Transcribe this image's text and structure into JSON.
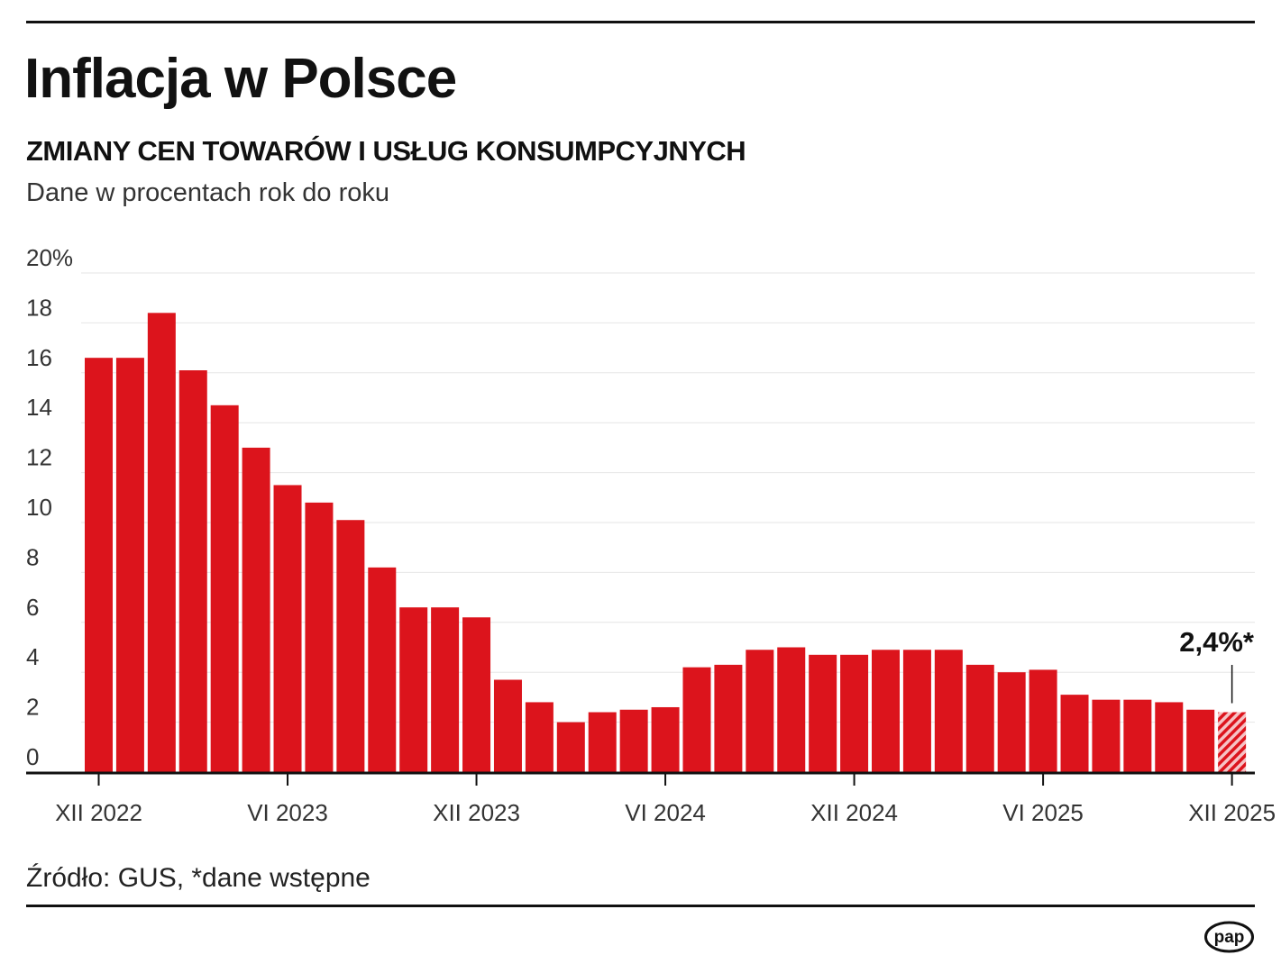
{
  "header": {
    "title": "Inflacja w Polsce",
    "subtitle": "ZMIANY CEN TOWARÓW I USŁUG KONSUMPCYJNYCH",
    "unit_note": "Dane w procentach rok do roku"
  },
  "footer": {
    "source": "Źródło: GUS, *dane wstępne",
    "logo_text": "pap"
  },
  "chart_data": {
    "type": "bar",
    "title": "Inflacja w Polsce",
    "subtitle": "ZMIANY CEN TOWARÓW I USŁUG KONSUMPCYJNYCH",
    "ylabel": "Dane w procentach rok do roku",
    "ylim": [
      0,
      20
    ],
    "yticks": [
      "0",
      "2",
      "4",
      "6",
      "8",
      "10",
      "12",
      "14",
      "16",
      "18",
      "20%"
    ],
    "grid": true,
    "bar_color": "#dc141c",
    "categories": [
      "XII 2022",
      "I 2023",
      "II 2023",
      "III 2023",
      "IV 2023",
      "V 2023",
      "VI 2023",
      "VII 2023",
      "VIII 2023",
      "IX 2023",
      "X 2023",
      "XI 2023",
      "XII 2023",
      "I 2024",
      "II 2024",
      "III 2024",
      "IV 2024",
      "V 2024",
      "VI 2024",
      "VII 2024",
      "VIII 2024",
      "IX 2024",
      "X 2024",
      "XI 2024",
      "XII 2024",
      "I 2025",
      "II 2025",
      "III 2025",
      "IV 2025",
      "V 2025",
      "VI 2025",
      "VII 2025",
      "VIII 2025",
      "IX 2025",
      "X 2025",
      "XI 2025",
      "XII 2025"
    ],
    "values": [
      16.6,
      16.6,
      18.4,
      16.1,
      14.7,
      13.0,
      11.5,
      10.8,
      10.1,
      8.2,
      6.6,
      6.6,
      6.2,
      3.7,
      2.8,
      2.0,
      2.4,
      2.5,
      2.6,
      4.2,
      4.3,
      4.9,
      5.0,
      4.7,
      4.7,
      4.9,
      4.9,
      4.9,
      4.3,
      4.0,
      4.1,
      3.1,
      2.9,
      2.9,
      2.8,
      2.5,
      2.4
    ],
    "xtick_labels": [
      "XII 2022",
      "VI 2023",
      "XII 2023",
      "VI 2024",
      "XII 2024",
      "VI 2025",
      "XII 2025"
    ],
    "preliminary_last": true,
    "annotation": "2,4%*"
  }
}
